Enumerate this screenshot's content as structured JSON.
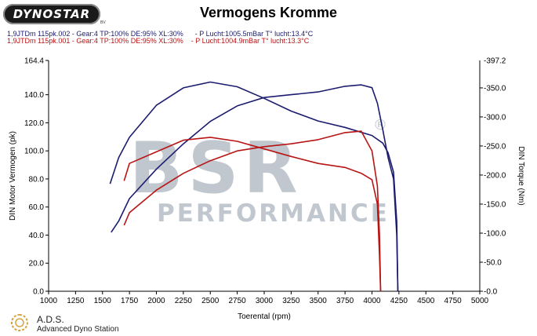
{
  "brand": {
    "logo_text": "DYNOSTAR",
    "logo_sub": "BV"
  },
  "header": {
    "title": "Vermogens Kromme"
  },
  "runs": [
    {
      "label": "1,9JTDm 115pk.002 - Gear:4 TP:100% DE:95% XL:30%      - P Lucht:1005.5mBar T° lucht:13.4°C",
      "color": "#1c1c6e"
    },
    {
      "label": "1,9JTDm 115pk.001 - Gear:4 TP:100% DE:95% XL:30%    - P Lucht:1004.9mBar T° lucht:13.3°C",
      "color": "#b81414"
    }
  ],
  "watermark": {
    "big": "BSR",
    "small": "PERFORMANCE",
    "reg": "®"
  },
  "footer": {
    "title": "A.D.S.",
    "subtitle": "Advanced Dyno Station"
  },
  "chart_data": {
    "type": "line",
    "title": "Vermogens Kromme",
    "xlabel": "Toerental (rpm)",
    "ylabel": "DIN Motor Vermogen (pk)",
    "y2label": "DIN Torque (Nm)",
    "xlim": [
      1000,
      5000
    ],
    "ylim": [
      0,
      164.4
    ],
    "y2lim": [
      0,
      397.2
    ],
    "x_ticks": [
      1000,
      1250,
      1500,
      1750,
      2000,
      2250,
      2500,
      2750,
      3000,
      3250,
      3500,
      3750,
      4000,
      4250,
      4500,
      4750,
      5000
    ],
    "y_ticks": [
      0,
      20,
      40,
      60,
      80,
      100,
      120,
      140
    ],
    "y_tick_labels": [
      "0.0",
      "20.0",
      "40.0",
      "60.0",
      "80.0",
      "100.0",
      "120.0",
      "140.0"
    ],
    "y_max_label": "164.4",
    "y2_ticks": [
      0,
      50,
      100,
      150,
      200,
      250,
      300,
      350
    ],
    "y2_tick_labels": [
      "0.0",
      "50.0",
      "100.0",
      "150.0",
      "200.0",
      "250.0",
      "300.0",
      "350.0"
    ],
    "y2_max_label": "397.2",
    "grid": false,
    "series": [
      {
        "run": 1,
        "quantity": "power",
        "axis": "left",
        "color": "#1c1c6e",
        "x": [
          1580,
          1650,
          1750,
          2000,
          2250,
          2500,
          2750,
          3000,
          3250,
          3500,
          3750,
          3900,
          4000,
          4050,
          4100,
          4150,
          4200,
          4230,
          4240
        ],
        "y": [
          42,
          50,
          66,
          87,
          105,
          121,
          132,
          138,
          140,
          142,
          146,
          147,
          145,
          134,
          115,
          95,
          80,
          40,
          0
        ]
      },
      {
        "run": 1,
        "quantity": "torque",
        "axis": "right",
        "color": "#1c1c6e",
        "x": [
          1570,
          1650,
          1750,
          2000,
          2250,
          2500,
          2750,
          3000,
          3250,
          3500,
          3750,
          4000,
          4100,
          4150,
          4200,
          4230,
          4240
        ],
        "y": [
          185,
          230,
          265,
          320,
          350,
          360,
          352,
          332,
          310,
          293,
          282,
          268,
          255,
          238,
          205,
          120,
          0
        ]
      },
      {
        "run": 2,
        "quantity": "power",
        "axis": "left",
        "color": "#b81414",
        "x": [
          1700,
          1750,
          2000,
          2250,
          2500,
          2750,
          3000,
          3250,
          3500,
          3750,
          3900,
          4000,
          4050,
          4070,
          4080
        ],
        "y": [
          47,
          56,
          72,
          84,
          93,
          100,
          103,
          105,
          108,
          113,
          114,
          100,
          75,
          40,
          0
        ]
      },
      {
        "run": 2,
        "quantity": "torque",
        "axis": "right",
        "color": "#b81414",
        "x": [
          1700,
          1750,
          2000,
          2250,
          2500,
          2750,
          3000,
          3250,
          3500,
          3750,
          3900,
          4000,
          4050,
          4070,
          4080
        ],
        "y": [
          190,
          220,
          240,
          260,
          265,
          258,
          245,
          232,
          220,
          213,
          203,
          192,
          150,
          60,
          0
        ]
      }
    ]
  }
}
